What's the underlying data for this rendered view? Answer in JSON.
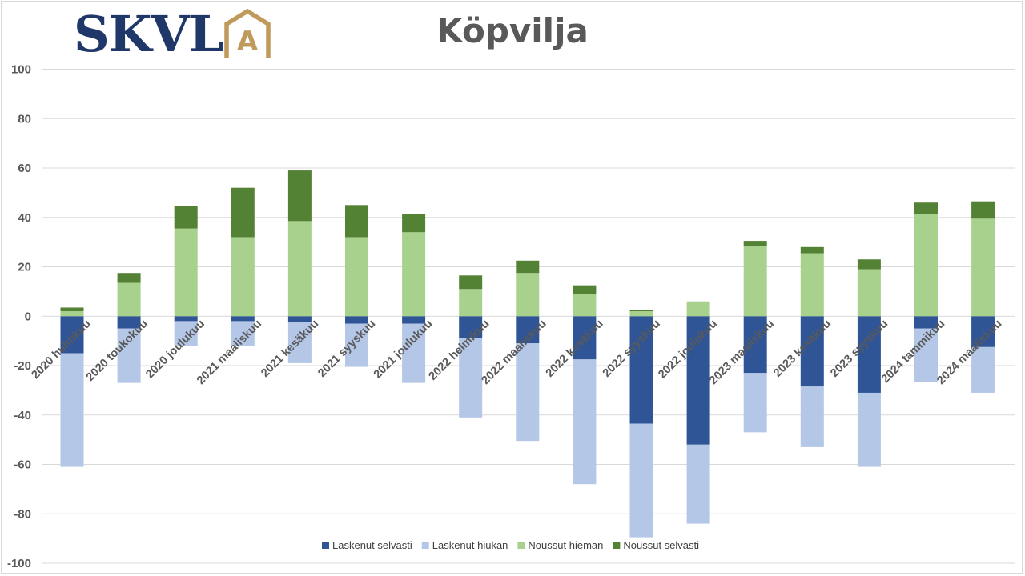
{
  "logo": {
    "text": "SKVL",
    "mark_letter": "A"
  },
  "colors": {
    "laskenut_selvasti": "#2f5597",
    "laskenut_hiukan": "#b4c7e7",
    "noussut_hieman": "#a9d18e",
    "noussut_selvasti": "#548235",
    "grid": "#d9d9d9",
    "logo_navy": "#1f3769",
    "logo_gold": "#c09a5b"
  },
  "chart_data": {
    "type": "bar",
    "stacked": true,
    "title": "Köpvilja",
    "xlabel": "",
    "ylabel": "",
    "ylim": [
      -100,
      100
    ],
    "yticks": [
      100,
      80,
      60,
      40,
      20,
      0,
      -20,
      -40,
      -60,
      -80,
      -100
    ],
    "grid": true,
    "legend_position": "bottom",
    "categories": [
      "2020 huhtikuu",
      "2020 toukokuu",
      "2020 joulukuu",
      "2021 maaliskuu",
      "2021 kesäkuu",
      "2021 syyskuu",
      "2021 joulukuu",
      "2022 helmikuu",
      "2022 maaliskuu",
      "2022 kesäkuu",
      "2022 syyskuu",
      "2022 joulukuu",
      "2023 maaliskuu",
      "2023 kesäkuu",
      "2023 syyskuu",
      "2024 tammikuu",
      "2024 maaliskuu"
    ],
    "series": [
      {
        "name": "Laskenut selvästi",
        "color_key": "laskenut_selvasti",
        "stack": "negative",
        "values": [
          -15,
          -5,
          -2,
          -2,
          -2.5,
          -3,
          -3,
          -9,
          -11,
          -17.5,
          -43.5,
          -52,
          -23,
          -28.5,
          -31,
          -5,
          -12.5
        ]
      },
      {
        "name": "Laskenut hiukan",
        "color_key": "laskenut_hiukan",
        "stack": "negative",
        "values": [
          -46,
          -22,
          -10,
          -10,
          -16.5,
          -17.5,
          -24,
          -32,
          -39.5,
          -50.5,
          -46,
          -32,
          -24,
          -24.5,
          -30,
          -21.5,
          -18.5
        ]
      },
      {
        "name": "Noussut hieman",
        "color_key": "noussut_hieman",
        "stack": "positive",
        "values": [
          2,
          13.5,
          35.5,
          32,
          38.5,
          32,
          34,
          11,
          17.5,
          9,
          2,
          6,
          28.5,
          25.5,
          19,
          41.5,
          39.5
        ]
      },
      {
        "name": "Noussut selvästi",
        "color_key": "noussut_selvasti",
        "stack": "positive",
        "values": [
          1.5,
          4,
          9,
          20,
          20.5,
          13,
          7.5,
          5.5,
          5,
          3.5,
          0.5,
          0,
          2,
          2.5,
          4,
          4.5,
          7
        ]
      }
    ]
  }
}
